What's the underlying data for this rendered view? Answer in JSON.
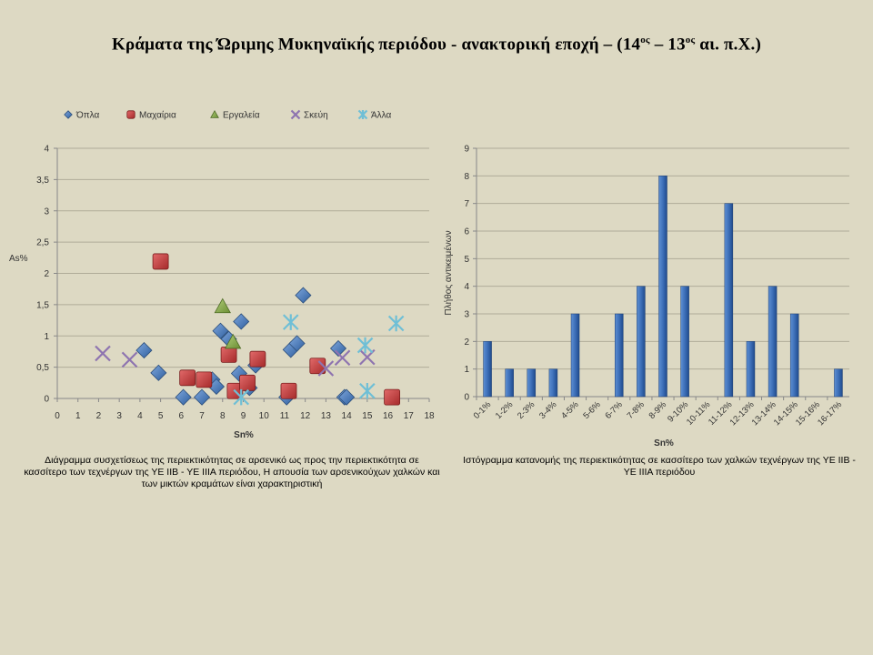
{
  "title": {
    "part1": "Κράματα της Ώριμης Μυκηναϊκής περιόδου - ανακτορική εποχή – (14",
    "sup1": "ος",
    "part2": " – 13",
    "sup2": "ος",
    "part3": " αι. π.Χ.)"
  },
  "chart_data": [
    {
      "type": "scatter",
      "xlabel": "Sn%",
      "ylabel": "As%",
      "xlim": [
        0,
        18
      ],
      "ylim": [
        0,
        4
      ],
      "x_ticks": [
        "0",
        "1",
        "2",
        "3",
        "4",
        "5",
        "6",
        "7",
        "8",
        "9",
        "10",
        "11",
        "12",
        "13",
        "14",
        "15",
        "16",
        "17",
        "18"
      ],
      "y_ticks": [
        "0",
        "0,5",
        "1",
        "1,5",
        "2",
        "2,5",
        "3",
        "3,5",
        "4"
      ],
      "legend_position": "top",
      "grid": "horizontal",
      "series": [
        {
          "name": "Όπλα",
          "marker": "diamond",
          "color": "#4a7ebb",
          "points": [
            [
              4.2,
              0.77
            ],
            [
              4.9,
              0.41
            ],
            [
              6.1,
              0.02
            ],
            [
              7.0,
              0.02
            ],
            [
              7.5,
              0.3
            ],
            [
              7.7,
              0.19
            ],
            [
              7.9,
              1.08
            ],
            [
              8.3,
              0.95
            ],
            [
              8.8,
              0.4
            ],
            [
              8.9,
              1.23
            ],
            [
              9.3,
              0.17
            ],
            [
              9.6,
              0.53
            ],
            [
              11.1,
              0.02
            ],
            [
              11.3,
              0.78
            ],
            [
              11.6,
              0.88
            ],
            [
              11.9,
              1.65
            ],
            [
              13.6,
              0.8
            ],
            [
              13.9,
              0.02
            ],
            [
              14.0,
              0.02
            ]
          ]
        },
        {
          "name": "Μαχαίρια",
          "marker": "square",
          "color": "#c0393b",
          "points": [
            [
              5.0,
              2.19
            ],
            [
              6.3,
              0.33
            ],
            [
              7.1,
              0.3
            ],
            [
              8.3,
              0.7
            ],
            [
              8.6,
              0.12
            ],
            [
              9.2,
              0.25
            ],
            [
              9.7,
              0.63
            ],
            [
              11.2,
              0.12
            ],
            [
              12.6,
              0.52
            ],
            [
              16.2,
              0.02
            ]
          ]
        },
        {
          "name": "Εργαλεία",
          "marker": "triangle",
          "color": "#8db04f",
          "points": [
            [
              8.0,
              1.47
            ],
            [
              8.5,
              0.9
            ]
          ]
        },
        {
          "name": "Σκεύη",
          "marker": "x",
          "color": "#8e74b0",
          "points": [
            [
              2.2,
              0.72
            ],
            [
              3.5,
              0.62
            ],
            [
              13.0,
              0.48
            ],
            [
              13.8,
              0.65
            ],
            [
              15.0,
              0.66
            ]
          ]
        },
        {
          "name": "Άλλα",
          "marker": "star",
          "color": "#6fbfd6",
          "points": [
            [
              8.9,
              0.02
            ],
            [
              11.3,
              1.22
            ],
            [
              14.9,
              0.85
            ],
            [
              15.0,
              0.12
            ],
            [
              16.4,
              1.2
            ]
          ]
        }
      ]
    },
    {
      "type": "bar",
      "xlabel": "Sn%",
      "ylabel": "Πλήθος αντικειμένων",
      "ylim": [
        0,
        9
      ],
      "y_ticks": [
        "0",
        "1",
        "2",
        "3",
        "4",
        "5",
        "6",
        "7",
        "8",
        "9"
      ],
      "grid": "horizontal",
      "color": "#2e5fa8",
      "categories": [
        "0-1%",
        "1-2%",
        "2-3%",
        "3-4%",
        "4-5%",
        "5-6%",
        "6-7%",
        "7-8%",
        "8-9%",
        "9-10%",
        "10-11%",
        "11-12%",
        "12-13%",
        "13-14%",
        "14-15%",
        "15-16%",
        "16-17%"
      ],
      "values": [
        2,
        1,
        1,
        1,
        3,
        0,
        3,
        4,
        8,
        4,
        0,
        7,
        2,
        4,
        3,
        0,
        1
      ]
    }
  ],
  "captions": {
    "scatter": "Διάγραμμα συσχετίσεως της περιεκτικότητας σε αρσενικό ως προς την περιεκτικότητα σε κασσίτερο των τεχνέργων της ΥΕ ΙΙΒ - ΥΕ ΙΙΙΑ περιόδου, Η απουσία των αρσενικούχων χαλκών και των μικτών κραμάτων είναι χαρακτηριστική",
    "hist": "Ιστόγραμμα κατανομής της περιεκτικότητας σε κασσίτερο των χαλκών τεχνέργων της ΥΕ ΙΙΒ - ΥΕ ΙΙΙΑ περιόδου"
  }
}
